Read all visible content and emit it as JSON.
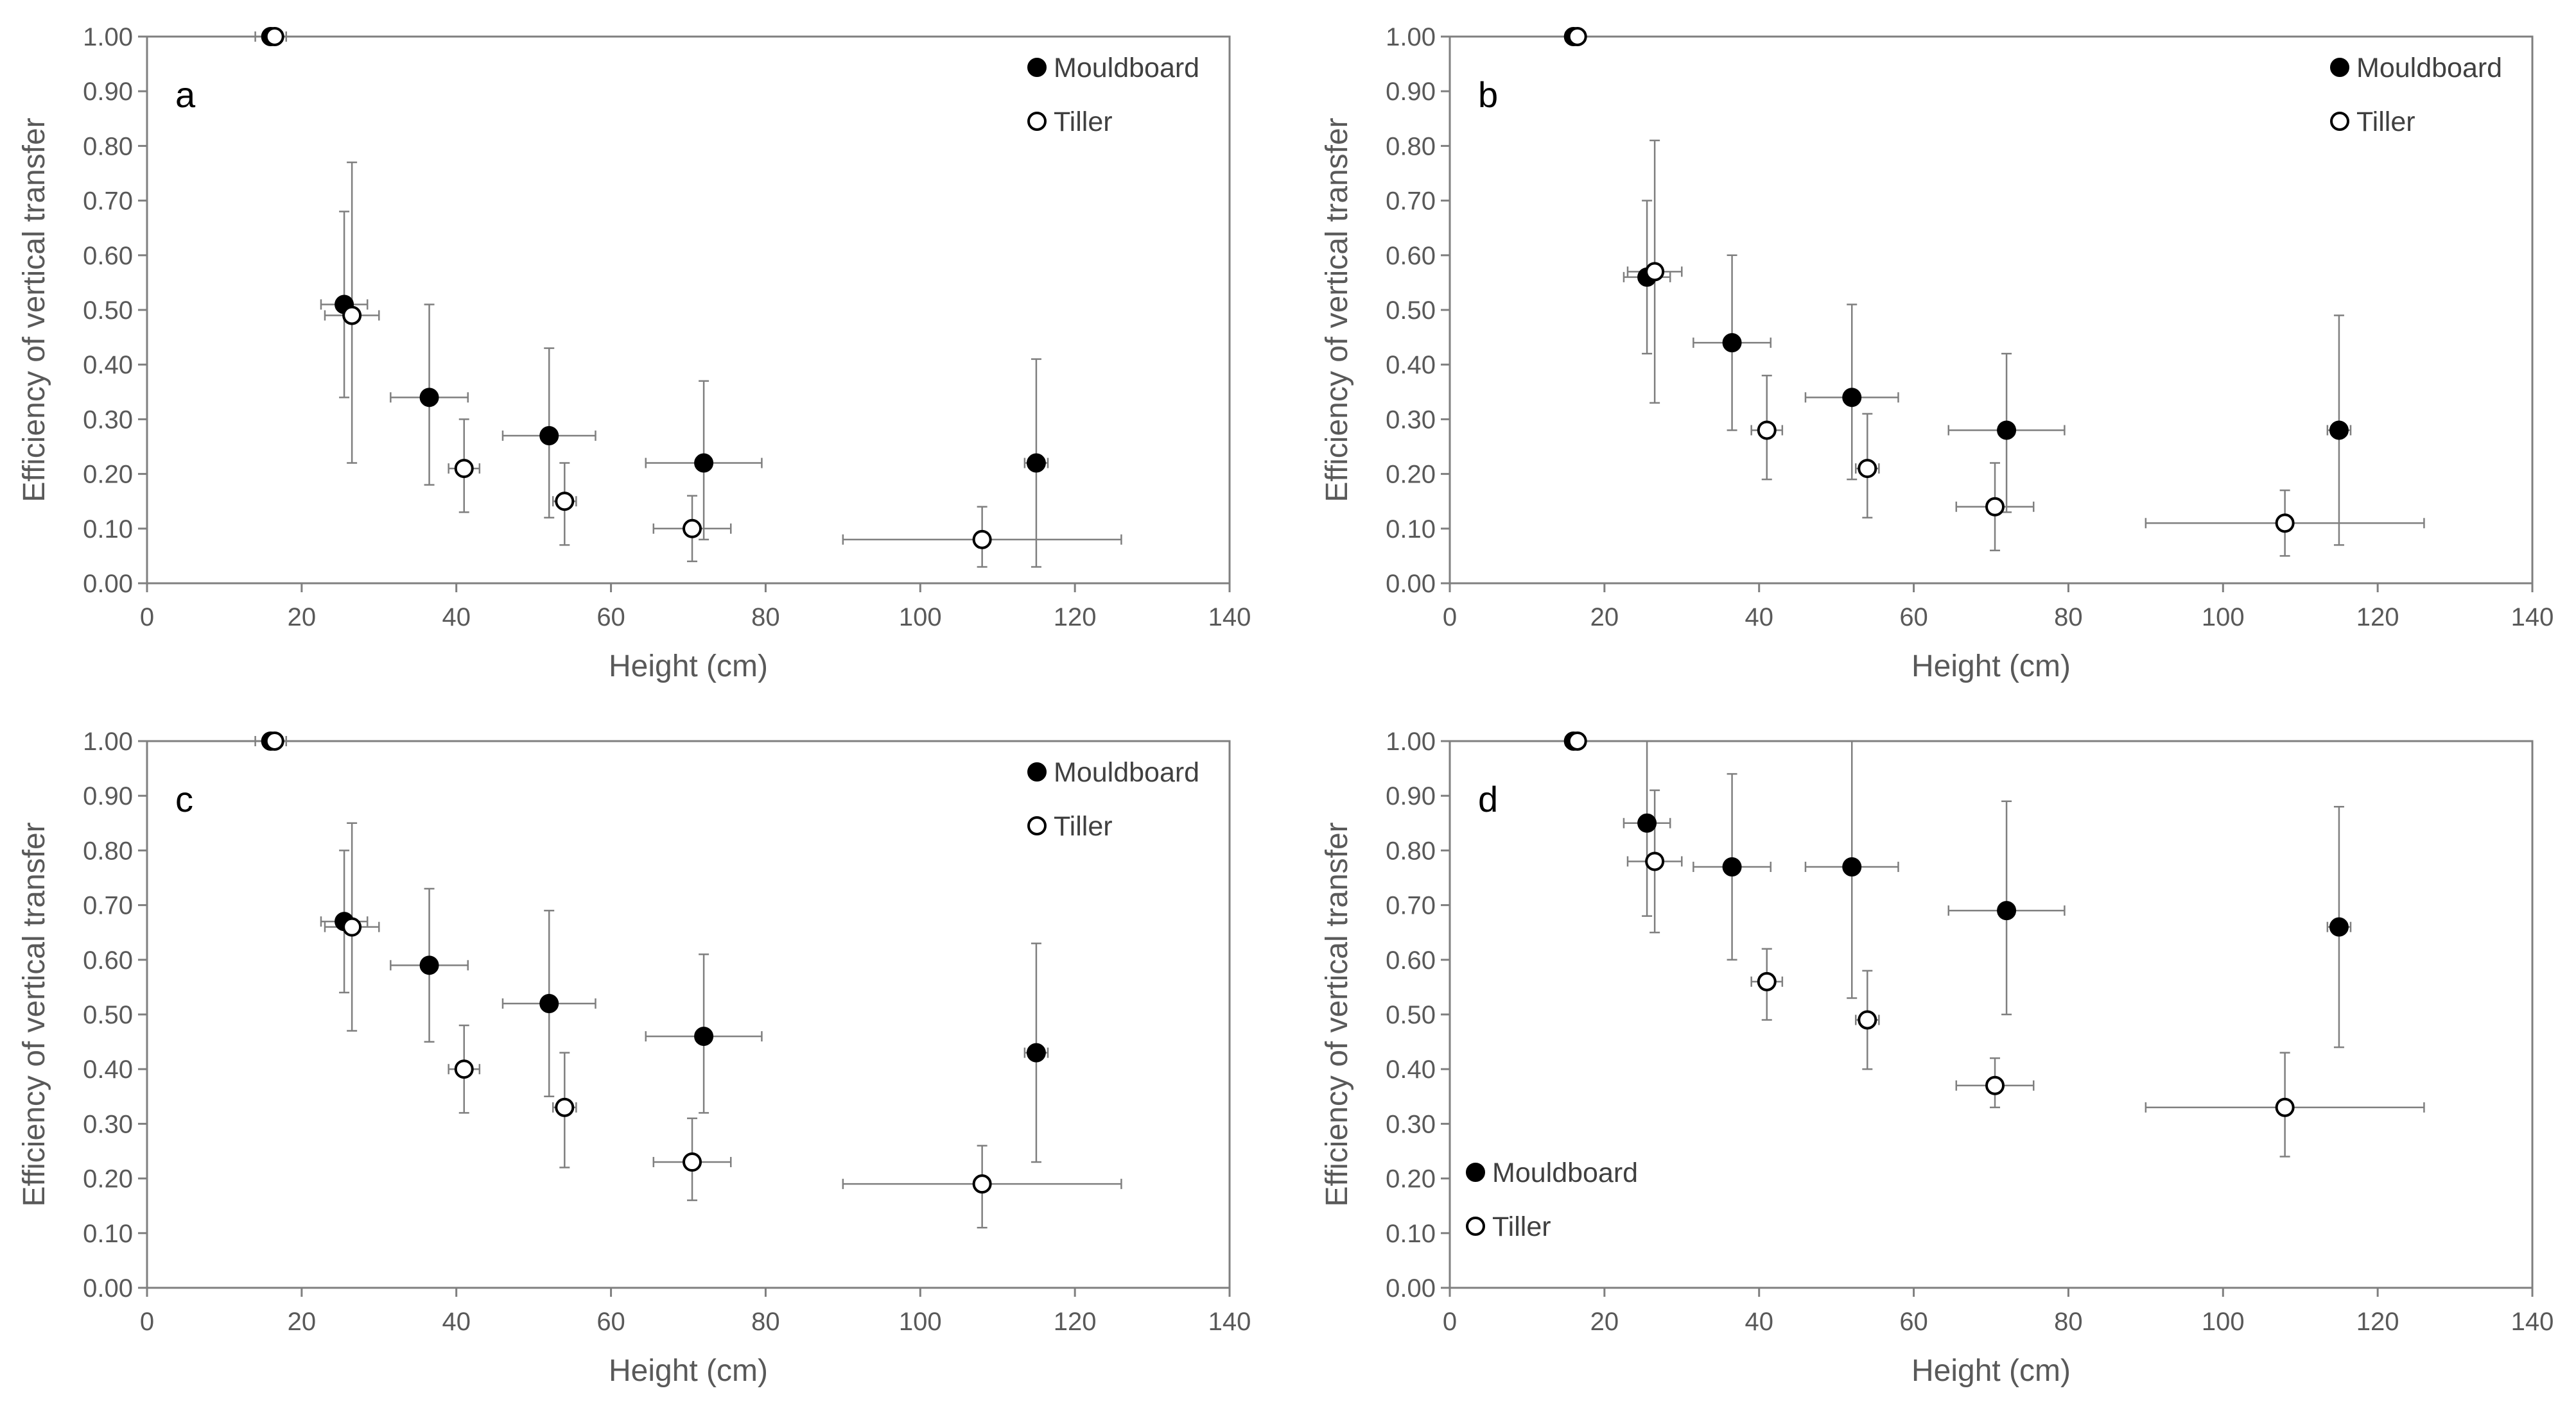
{
  "chart_data": [
    {
      "type": "scatter",
      "panel_label": "a",
      "xlabel": "Height (cm)",
      "ylabel": "Efficiency of vertical transfer",
      "xlim": [
        0,
        140
      ],
      "ylim": [
        0,
        1
      ],
      "xticks": [
        "0",
        "20",
        "40",
        "60",
        "80",
        "100",
        "120",
        "140"
      ],
      "yticks": [
        "0.00",
        "0.10",
        "0.20",
        "0.30",
        "0.40",
        "0.50",
        "0.60",
        "0.70",
        "0.80",
        "0.90",
        "1.00"
      ],
      "grid": false,
      "legend": "top-right",
      "series": [
        {
          "name": "Mouldboard",
          "marker": "filled",
          "points": [
            {
              "x": 16,
              "y": 1.0,
              "xerr": 2,
              "ylo": 1.0,
              "yhi": 1.0
            },
            {
              "x": 25.5,
              "y": 0.51,
              "xerr": 3,
              "ylo": 0.34,
              "yhi": 0.68
            },
            {
              "x": 36.5,
              "y": 0.34,
              "xerr": 5,
              "ylo": 0.18,
              "yhi": 0.51
            },
            {
              "x": 52,
              "y": 0.27,
              "xerr": 6,
              "ylo": 0.12,
              "yhi": 0.43
            },
            {
              "x": 72,
              "y": 0.22,
              "xerr": 7.5,
              "ylo": 0.08,
              "yhi": 0.37
            },
            {
              "x": 115,
              "y": 0.22,
              "xerr": 1.5,
              "ylo": 0.03,
              "yhi": 0.41
            }
          ]
        },
        {
          "name": "Tiller",
          "marker": "open",
          "points": [
            {
              "x": 16.5,
              "y": 1.0,
              "xerr": 1,
              "ylo": 1.0,
              "yhi": 1.0
            },
            {
              "x": 26.5,
              "y": 0.49,
              "xerr": 3.5,
              "ylo": 0.22,
              "yhi": 0.77
            },
            {
              "x": 41,
              "y": 0.21,
              "xerr": 2,
              "ylo": 0.13,
              "yhi": 0.3
            },
            {
              "x": 54,
              "y": 0.15,
              "xerr": 1.5,
              "ylo": 0.07,
              "yhi": 0.22
            },
            {
              "x": 70.5,
              "y": 0.1,
              "xerr": 5,
              "ylo": 0.04,
              "yhi": 0.16
            },
            {
              "x": 108,
              "y": 0.08,
              "xerr": 18,
              "ylo": 0.03,
              "yhi": 0.14
            }
          ]
        }
      ]
    },
    {
      "type": "scatter",
      "panel_label": "b",
      "xlabel": "Height (cm)",
      "ylabel": "Efficiency of vertical transfer",
      "xlim": [
        0,
        140
      ],
      "ylim": [
        0,
        1
      ],
      "xticks": [
        "0",
        "20",
        "40",
        "60",
        "80",
        "100",
        "120",
        "140"
      ],
      "yticks": [
        "0.00",
        "0.10",
        "0.20",
        "0.30",
        "0.40",
        "0.50",
        "0.60",
        "0.70",
        "0.80",
        "0.90",
        "1.00"
      ],
      "grid": false,
      "legend": "top-right",
      "series": [
        {
          "name": "Mouldboard",
          "marker": "filled",
          "points": [
            {
              "x": 16,
              "y": 1.0,
              "xerr": 1,
              "ylo": 1.0,
              "yhi": 1.0
            },
            {
              "x": 25.5,
              "y": 0.56,
              "xerr": 3,
              "ylo": 0.42,
              "yhi": 0.7
            },
            {
              "x": 36.5,
              "y": 0.44,
              "xerr": 5,
              "ylo": 0.28,
              "yhi": 0.6
            },
            {
              "x": 52,
              "y": 0.34,
              "xerr": 6,
              "ylo": 0.19,
              "yhi": 0.51
            },
            {
              "x": 72,
              "y": 0.28,
              "xerr": 7.5,
              "ylo": 0.13,
              "yhi": 0.42
            },
            {
              "x": 115,
              "y": 0.28,
              "xerr": 1.5,
              "ylo": 0.07,
              "yhi": 0.49
            }
          ]
        },
        {
          "name": "Tiller",
          "marker": "open",
          "points": [
            {
              "x": 16.5,
              "y": 1.0,
              "xerr": 1,
              "ylo": 1.0,
              "yhi": 1.0
            },
            {
              "x": 26.5,
              "y": 0.57,
              "xerr": 3.5,
              "ylo": 0.33,
              "yhi": 0.81
            },
            {
              "x": 41,
              "y": 0.28,
              "xerr": 2,
              "ylo": 0.19,
              "yhi": 0.38
            },
            {
              "x": 54,
              "y": 0.21,
              "xerr": 1.5,
              "ylo": 0.12,
              "yhi": 0.31
            },
            {
              "x": 70.5,
              "y": 0.14,
              "xerr": 5,
              "ylo": 0.06,
              "yhi": 0.22
            },
            {
              "x": 108,
              "y": 0.11,
              "xerr": 18,
              "ylo": 0.05,
              "yhi": 0.17
            }
          ]
        }
      ]
    },
    {
      "type": "scatter",
      "panel_label": "c",
      "xlabel": "Height (cm)",
      "ylabel": "Efficiency of vertical transfer",
      "xlim": [
        0,
        140
      ],
      "ylim": [
        0,
        1
      ],
      "xticks": [
        "0",
        "20",
        "40",
        "60",
        "80",
        "100",
        "120",
        "140"
      ],
      "yticks": [
        "0.00",
        "0.10",
        "0.20",
        "0.30",
        "0.40",
        "0.50",
        "0.60",
        "0.70",
        "0.80",
        "0.90",
        "1.00"
      ],
      "grid": false,
      "legend": "top-right",
      "series": [
        {
          "name": "Mouldboard",
          "marker": "filled",
          "points": [
            {
              "x": 16,
              "y": 1.0,
              "xerr": 2,
              "ylo": 1.0,
              "yhi": 1.0
            },
            {
              "x": 25.5,
              "y": 0.67,
              "xerr": 3,
              "ylo": 0.54,
              "yhi": 0.8
            },
            {
              "x": 36.5,
              "y": 0.59,
              "xerr": 5,
              "ylo": 0.45,
              "yhi": 0.73
            },
            {
              "x": 52,
              "y": 0.52,
              "xerr": 6,
              "ylo": 0.35,
              "yhi": 0.69
            },
            {
              "x": 72,
              "y": 0.46,
              "xerr": 7.5,
              "ylo": 0.32,
              "yhi": 0.61
            },
            {
              "x": 115,
              "y": 0.43,
              "xerr": 1.5,
              "ylo": 0.23,
              "yhi": 0.63
            }
          ]
        },
        {
          "name": "Tiller",
          "marker": "open",
          "points": [
            {
              "x": 16.5,
              "y": 1.0,
              "xerr": 1,
              "ylo": 1.0,
              "yhi": 1.0
            },
            {
              "x": 26.5,
              "y": 0.66,
              "xerr": 3.5,
              "ylo": 0.47,
              "yhi": 0.85
            },
            {
              "x": 41,
              "y": 0.4,
              "xerr": 2,
              "ylo": 0.32,
              "yhi": 0.48
            },
            {
              "x": 54,
              "y": 0.33,
              "xerr": 1.5,
              "ylo": 0.22,
              "yhi": 0.43
            },
            {
              "x": 70.5,
              "y": 0.23,
              "xerr": 5,
              "ylo": 0.16,
              "yhi": 0.31
            },
            {
              "x": 108,
              "y": 0.19,
              "xerr": 18,
              "ylo": 0.11,
              "yhi": 0.26
            }
          ]
        }
      ]
    },
    {
      "type": "scatter",
      "panel_label": "d",
      "xlabel": "Height (cm)",
      "ylabel": "Efficiency of vertical transfer",
      "xlim": [
        0,
        140
      ],
      "ylim": [
        0,
        1
      ],
      "xticks": [
        "0",
        "20",
        "40",
        "60",
        "80",
        "100",
        "120",
        "140"
      ],
      "yticks": [
        "0.00",
        "0.10",
        "0.20",
        "0.30",
        "0.40",
        "0.50",
        "0.60",
        "0.70",
        "0.80",
        "0.90",
        "1.00"
      ],
      "grid": false,
      "legend": "bottom-left",
      "series": [
        {
          "name": "Mouldboard",
          "marker": "filled",
          "points": [
            {
              "x": 16,
              "y": 1.0,
              "xerr": 1,
              "ylo": 1.0,
              "yhi": 1.0
            },
            {
              "x": 25.5,
              "y": 0.85,
              "xerr": 3,
              "ylo": 0.68,
              "yhi": 1.0
            },
            {
              "x": 36.5,
              "y": 0.77,
              "xerr": 5,
              "ylo": 0.6,
              "yhi": 0.94
            },
            {
              "x": 52,
              "y": 0.77,
              "xerr": 6,
              "ylo": 0.53,
              "yhi": 1.0
            },
            {
              "x": 72,
              "y": 0.69,
              "xerr": 7.5,
              "ylo": 0.5,
              "yhi": 0.89
            },
            {
              "x": 115,
              "y": 0.66,
              "xerr": 1.5,
              "ylo": 0.44,
              "yhi": 0.88
            }
          ]
        },
        {
          "name": "Tiller",
          "marker": "open",
          "points": [
            {
              "x": 16.5,
              "y": 1.0,
              "xerr": 1,
              "ylo": 1.0,
              "yhi": 1.0
            },
            {
              "x": 26.5,
              "y": 0.78,
              "xerr": 3.5,
              "ylo": 0.65,
              "yhi": 0.91
            },
            {
              "x": 41,
              "y": 0.56,
              "xerr": 2,
              "ylo": 0.49,
              "yhi": 0.62
            },
            {
              "x": 54,
              "y": 0.49,
              "xerr": 1.5,
              "ylo": 0.4,
              "yhi": 0.58
            },
            {
              "x": 70.5,
              "y": 0.37,
              "xerr": 5,
              "ylo": 0.33,
              "yhi": 0.42
            },
            {
              "x": 108,
              "y": 0.33,
              "xerr": 18,
              "ylo": 0.24,
              "yhi": 0.43
            }
          ]
        }
      ]
    }
  ],
  "colors": {
    "axis": "#7f7f7f",
    "errorbar": "#7f7f7f",
    "marker_fill": "#000000",
    "marker_open_fill": "#ffffff",
    "marker_stroke": "#000000"
  }
}
